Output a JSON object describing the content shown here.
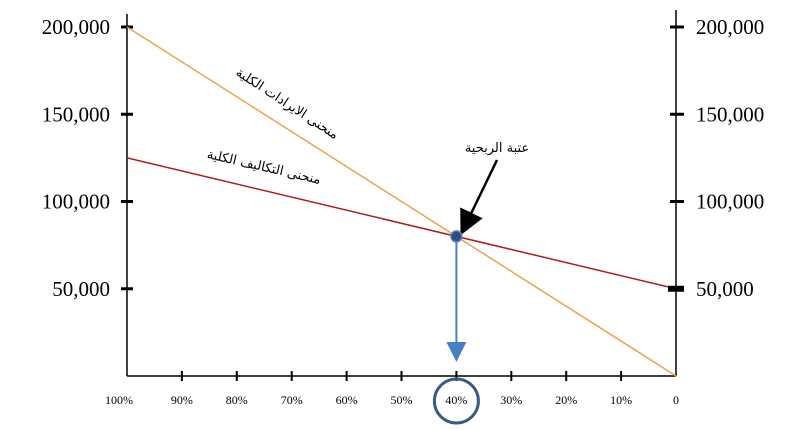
{
  "chart_data": {
    "type": "line",
    "title": "",
    "xlabel": "",
    "ylabel": "",
    "x_tick_labels": [
      "100%",
      "90%",
      "80%",
      "70%",
      "60%",
      "50%",
      "40%",
      "30%",
      "20%",
      "10%",
      "0"
    ],
    "left_y_tick_labels": [
      "200,000",
      "150,000",
      "100,000",
      "50,000"
    ],
    "right_y_tick_labels": [
      "200,000",
      "150,000",
      "100,000",
      "50,000"
    ],
    "ylim": [
      0,
      200000
    ],
    "series": [
      {
        "name": "منحنى الايرادات الكلية",
        "color": "#f0a050",
        "x": [
          100,
          0
        ],
        "y": [
          200000,
          0
        ]
      },
      {
        "name": "منحنى التكاليف الكلية",
        "color": "#b01c1c",
        "x": [
          100,
          0
        ],
        "y": [
          125000,
          50000
        ]
      }
    ],
    "annotations": {
      "breakeven_label": "عتبة الربحية",
      "breakeven_x": 40,
      "breakeven_y": 80000,
      "highlighted_x_tick": "40%"
    }
  }
}
